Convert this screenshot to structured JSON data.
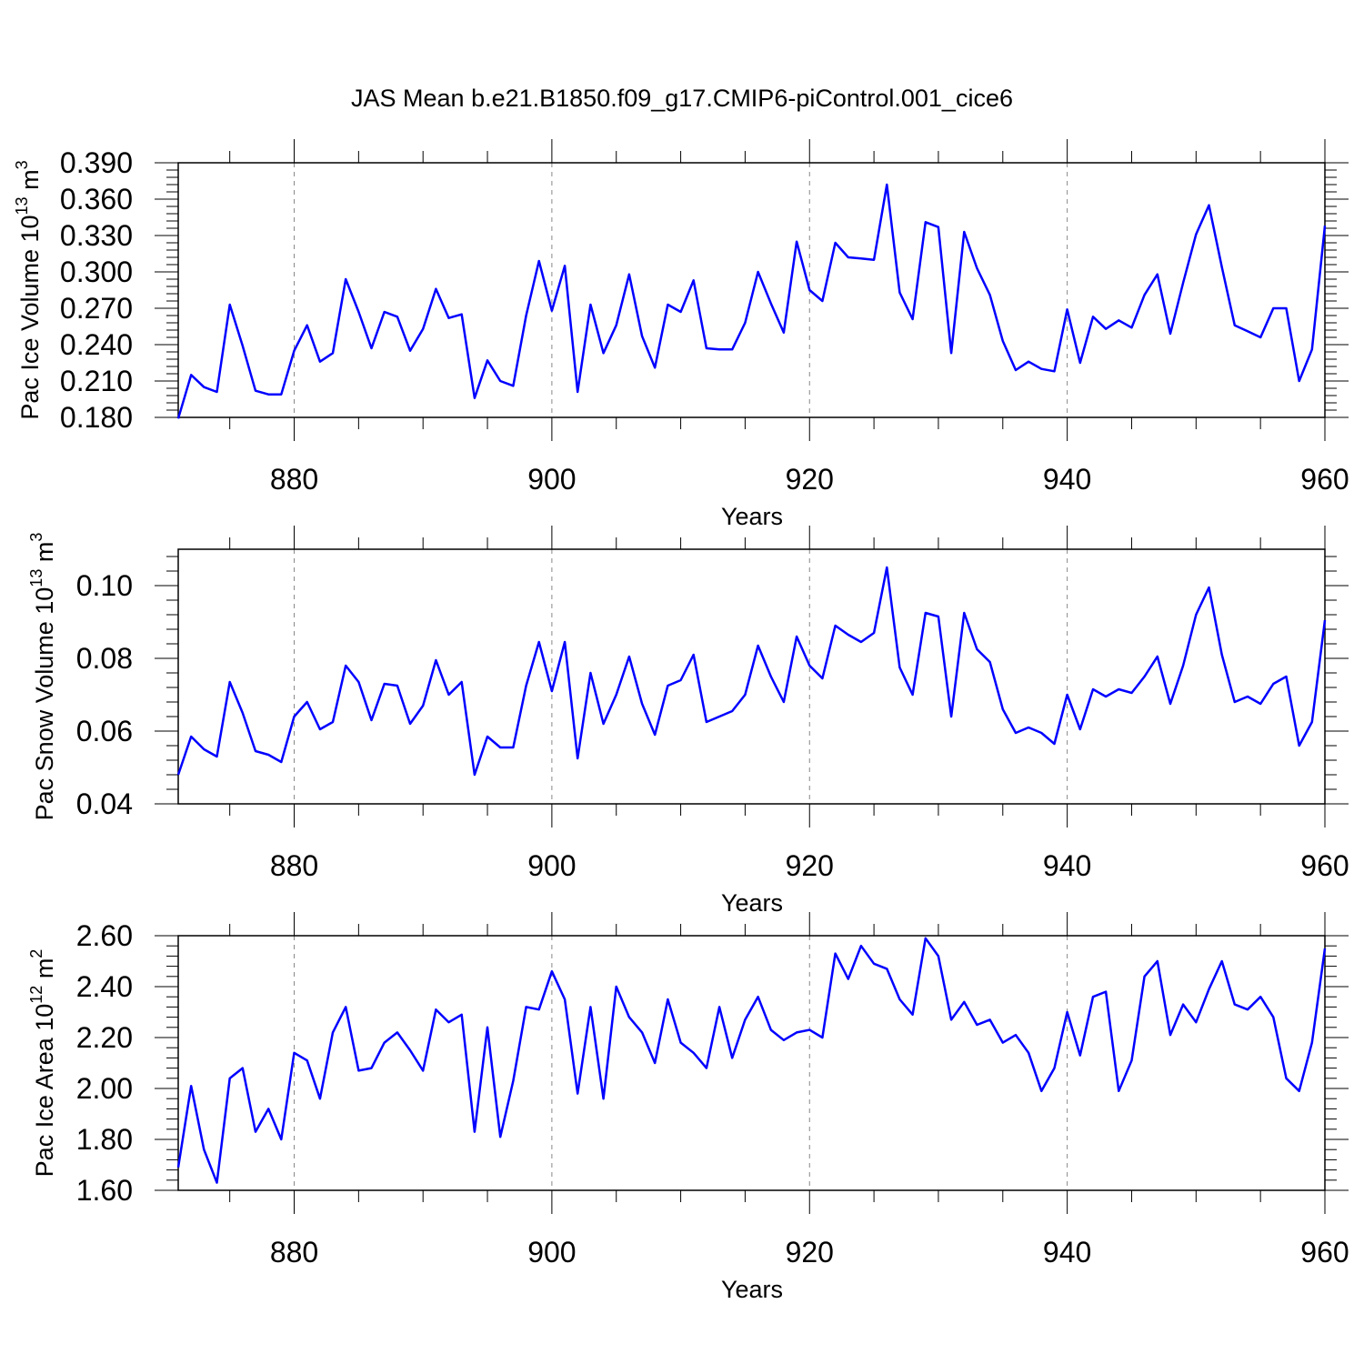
{
  "title": "JAS Mean b.e21.B1850.f09_g17.CMIP6-piControl.001_cice6",
  "line_color": "#0000ff",
  "chart_data": [
    {
      "type": "line",
      "ylabel": {
        "prefix": "Pac Ice Volume 10",
        "exp": "13",
        "mid": " m",
        "unit_exp": "3"
      },
      "xlabel": "Years",
      "xlim": [
        871,
        960
      ],
      "ylim": [
        0.18,
        0.39
      ],
      "xticks": [
        "880",
        "900",
        "920",
        "940",
        "960"
      ],
      "yticks": [
        "0.180",
        "0.210",
        "0.240",
        "0.270",
        "0.300",
        "0.330",
        "0.360",
        "0.390"
      ],
      "grid": "vertical dashed at major x ticks",
      "series": [
        {
          "x_start": 871,
          "values": [
            0.179,
            0.215,
            0.205,
            0.201,
            0.273,
            0.239,
            0.202,
            0.199,
            0.199,
            0.235,
            0.256,
            0.226,
            0.233,
            0.294,
            0.267,
            0.237,
            0.267,
            0.263,
            0.235,
            0.253,
            0.286,
            0.262,
            0.265,
            0.196,
            0.227,
            0.21,
            0.206,
            0.264,
            0.309,
            0.268,
            0.305,
            0.201,
            0.273,
            0.233,
            0.256,
            0.298,
            0.247,
            0.221,
            0.273,
            0.267,
            0.293,
            0.237,
            0.236,
            0.236,
            0.258,
            0.3,
            0.274,
            0.25,
            0.325,
            0.285,
            0.276,
            0.324,
            0.312,
            0.311,
            0.31,
            0.372,
            0.283,
            0.261,
            0.341,
            0.337,
            0.233,
            0.333,
            0.303,
            0.281,
            0.243,
            0.219,
            0.226,
            0.22,
            0.218,
            0.269,
            0.225,
            0.263,
            0.253,
            0.26,
            0.254,
            0.281,
            0.298,
            0.249,
            0.291,
            0.331,
            0.355,
            0.304,
            0.256,
            0.251,
            0.246,
            0.27,
            0.27,
            0.21,
            0.236,
            0.338
          ]
        }
      ]
    },
    {
      "type": "line",
      "ylabel": {
        "prefix": "Pac Snow Volume 10",
        "exp": "13",
        "mid": " m",
        "unit_exp": "3"
      },
      "xlabel": "Years",
      "xlim": [
        871,
        960
      ],
      "ylim": [
        0.04,
        0.11
      ],
      "xticks": [
        "880",
        "900",
        "920",
        "940",
        "960"
      ],
      "yticks": [
        "0.04",
        "0.06",
        "0.08",
        "0.10"
      ],
      "grid": "vertical dashed at major x ticks",
      "series": [
        {
          "x_start": 871,
          "values": [
            0.048,
            0.0585,
            0.055,
            0.053,
            0.0735,
            0.065,
            0.0545,
            0.0535,
            0.0515,
            0.064,
            0.068,
            0.0605,
            0.0625,
            0.078,
            0.0735,
            0.063,
            0.073,
            0.0725,
            0.062,
            0.067,
            0.0795,
            0.07,
            0.0735,
            0.048,
            0.0585,
            0.0555,
            0.0555,
            0.0725,
            0.0845,
            0.071,
            0.0845,
            0.0525,
            0.076,
            0.062,
            0.07,
            0.0805,
            0.0675,
            0.059,
            0.0725,
            0.074,
            0.081,
            0.0625,
            0.064,
            0.0655,
            0.07,
            0.0835,
            0.075,
            0.068,
            0.086,
            0.078,
            0.0745,
            0.089,
            0.0865,
            0.0845,
            0.087,
            0.105,
            0.0775,
            0.07,
            0.0925,
            0.0915,
            0.064,
            0.0925,
            0.0825,
            0.079,
            0.066,
            0.0595,
            0.061,
            0.0595,
            0.0565,
            0.07,
            0.0605,
            0.0715,
            0.0695,
            0.0715,
            0.0705,
            0.075,
            0.0805,
            0.0675,
            0.078,
            0.092,
            0.0995,
            0.081,
            0.068,
            0.0695,
            0.0675,
            0.073,
            0.075,
            0.056,
            0.0625,
            0.0905
          ]
        }
      ]
    },
    {
      "type": "line",
      "ylabel": {
        "prefix": "Pac Ice Area 10",
        "exp": "12",
        "mid": " m",
        "unit_exp": "2"
      },
      "xlabel": "Years",
      "xlim": [
        871,
        960
      ],
      "ylim": [
        1.6,
        2.6
      ],
      "xticks": [
        "880",
        "900",
        "920",
        "940",
        "960"
      ],
      "yticks": [
        "1.60",
        "1.80",
        "2.00",
        "2.20",
        "2.40",
        "2.60"
      ],
      "grid": "vertical dashed at major x ticks",
      "series": [
        {
          "x_start": 871,
          "values": [
            1.69,
            2.01,
            1.76,
            1.63,
            2.04,
            2.08,
            1.83,
            1.92,
            1.8,
            2.14,
            2.11,
            1.96,
            2.22,
            2.32,
            2.07,
            2.08,
            2.18,
            2.22,
            2.15,
            2.07,
            2.31,
            2.26,
            2.29,
            1.83,
            2.24,
            1.81,
            2.03,
            2.32,
            2.31,
            2.46,
            2.35,
            1.98,
            2.32,
            1.96,
            2.4,
            2.28,
            2.22,
            2.1,
            2.35,
            2.18,
            2.14,
            2.08,
            2.32,
            2.12,
            2.27,
            2.36,
            2.23,
            2.19,
            2.22,
            2.23,
            2.2,
            2.53,
            2.43,
            2.56,
            2.49,
            2.47,
            2.35,
            2.29,
            2.59,
            2.52,
            2.27,
            2.34,
            2.25,
            2.27,
            2.18,
            2.21,
            2.14,
            1.99,
            2.08,
            2.3,
            2.13,
            2.36,
            2.38,
            1.99,
            2.11,
            2.44,
            2.5,
            2.21,
            2.33,
            2.26,
            2.39,
            2.5,
            2.33,
            2.31,
            2.36,
            2.28,
            2.04,
            1.99,
            2.18,
            2.55
          ]
        }
      ]
    }
  ]
}
